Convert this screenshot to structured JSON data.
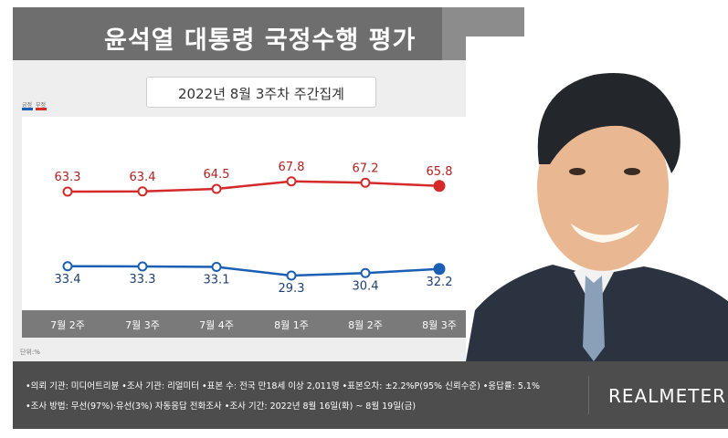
{
  "header": {
    "title": "윤석열 대통령 국정수행 평가"
  },
  "subtitle": "2022년 8월 3주차 주간집계",
  "legend": {
    "approve_label": "긍정",
    "disapprove_label": "부정"
  },
  "unit_label": "단위:%",
  "colors": {
    "approve": "#1a5fb4",
    "disapprove": "#d42a2a",
    "xband": "#7a7a7a"
  },
  "chart_data": {
    "type": "line",
    "categories": [
      "7월 2주",
      "7월 3주",
      "7월 4주",
      "8월 1주",
      "8월 2주",
      "8월 3주"
    ],
    "series": [
      {
        "name": "긍정",
        "values": [
          33.4,
          33.3,
          33.1,
          29.3,
          30.4,
          32.2
        ]
      },
      {
        "name": "부정",
        "values": [
          63.3,
          63.4,
          64.5,
          67.8,
          67.2,
          65.8
        ]
      }
    ],
    "data_labels": {
      "approve": [
        "33.4",
        "33.3",
        "33.1",
        "29.3",
        "30.4",
        "32.2"
      ],
      "disapprove": [
        "63.3",
        "63.4",
        "64.5",
        "67.8",
        "67.2",
        "65.8"
      ]
    },
    "grid": false,
    "legend_position": "top-left"
  },
  "footer": {
    "line1": "•의뢰 기관: 미디어트리뷴 •조사 기관: 리얼미터 •표본 수: 전국 만18세 이상 2,011명 •표본오차: ±2.2%P(95% 신뢰수준) •응답률: 5.1%",
    "line2": "•조사 방법: 무선(97%)·유선(3%) 자동응답 전화조사 •조사 기간: 2022년 8월 16일(화) ~ 8월 19일(금)",
    "brand": "REALMETER"
  }
}
